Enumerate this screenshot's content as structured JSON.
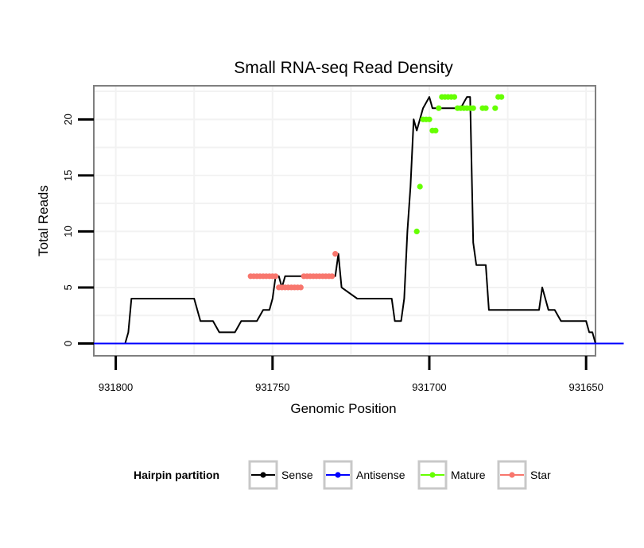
{
  "chart_data": {
    "type": "line",
    "title": "Small RNA-seq Read Density",
    "xlabel": "Genomic Position",
    "ylabel": "Total Reads",
    "x_reversed": true,
    "xlim": [
      931807,
      931647
    ],
    "ylim": [
      -1.1,
      23
    ],
    "xticks": [
      931800,
      931750,
      931700,
      931650
    ],
    "xtick_labels": [
      "931800",
      "931750",
      "931700",
      "931650"
    ],
    "yticks": [
      0,
      5,
      10,
      15,
      20
    ],
    "ytick_labels": [
      "0",
      "5",
      "10",
      "15",
      "20"
    ],
    "grid": true,
    "legend": {
      "title": "Hairpin partition",
      "position": "bottom",
      "entries": [
        {
          "label": "Sense",
          "color": "#000000"
        },
        {
          "label": "Antisense",
          "color": "#0000ff"
        },
        {
          "label": "Mature",
          "color": "#66ff00"
        },
        {
          "label": "Star",
          "color": "#f8766d"
        }
      ]
    },
    "series": [
      {
        "name": "Sense",
        "color": "#000000",
        "x": [
          931807,
          931797,
          931796,
          931795,
          931775,
          931773,
          931771,
          931769,
          931767,
          931762,
          931760,
          931755,
          931753,
          931751,
          931750,
          931749,
          931748,
          931747,
          931746,
          931730,
          931729,
          931728,
          931723,
          931722,
          931721,
          931712,
          931711,
          931709,
          931708,
          931707,
          931706,
          931705,
          931704,
          931702,
          931700,
          931699,
          931698,
          931697,
          931696,
          931695,
          931694,
          931693,
          931692,
          931690,
          931688,
          931687,
          931686,
          931685,
          931684,
          931682,
          931681,
          931680,
          931678,
          931677,
          931675,
          931672,
          931670,
          931669,
          931668,
          931667,
          931666,
          931665,
          931664,
          931663,
          931662,
          931660,
          931658,
          931657,
          931656,
          931652,
          931650,
          931649,
          931648,
          931647,
          931646,
          931645,
          931638
        ],
        "y": [
          0,
          0,
          1,
          4,
          4,
          2,
          2,
          2,
          1,
          1,
          2,
          2,
          3,
          3,
          4,
          6,
          6,
          5,
          6,
          6,
          8,
          5,
          4,
          4,
          4,
          4,
          2,
          2,
          4,
          10,
          14,
          20,
          19,
          21,
          22,
          21,
          21,
          21,
          21,
          21,
          21,
          21,
          21,
          21,
          22,
          22,
          9,
          7,
          7,
          7,
          3,
          3,
          3,
          3,
          3,
          3,
          3,
          3,
          3,
          3,
          3,
          3,
          5,
          4,
          3,
          3,
          2,
          2,
          2,
          2,
          2,
          1,
          1,
          0,
          0,
          0,
          0
        ]
      },
      {
        "name": "Antisense",
        "color": "#0000ff",
        "x": [
          931807,
          931638
        ],
        "y": [
          0,
          0
        ]
      },
      {
        "name": "Mature",
        "color": "#66ff00",
        "x": [
          931704,
          931703,
          931702,
          931701,
          931700,
          931699,
          931698,
          931697,
          931696,
          931695,
          931694,
          931693,
          931692,
          931691,
          931690,
          931689,
          931688,
          931687,
          931686,
          931683,
          931682,
          931679,
          931678,
          931677
        ],
        "y": [
          10,
          14,
          20,
          20,
          20,
          19,
          19,
          21,
          22,
          22,
          22,
          22,
          22,
          21,
          21,
          21,
          21,
          21,
          21,
          21,
          21,
          21,
          22,
          22
        ]
      },
      {
        "name": "Star",
        "color": "#f8766d",
        "x": [
          931757,
          931756,
          931755,
          931754,
          931753,
          931752,
          931751,
          931750,
          931749,
          931748,
          931747,
          931746,
          931745,
          931744,
          931743,
          931742,
          931741,
          931740,
          931739,
          931738,
          931737,
          931736,
          931735,
          931734,
          931733,
          931732,
          931731,
          931730
        ],
        "y": [
          6,
          6,
          6,
          6,
          6,
          6,
          6,
          6,
          6,
          5,
          5,
          5,
          5,
          5,
          5,
          5,
          5,
          6,
          6,
          6,
          6,
          6,
          6,
          6,
          6,
          6,
          6,
          8
        ]
      }
    ]
  }
}
